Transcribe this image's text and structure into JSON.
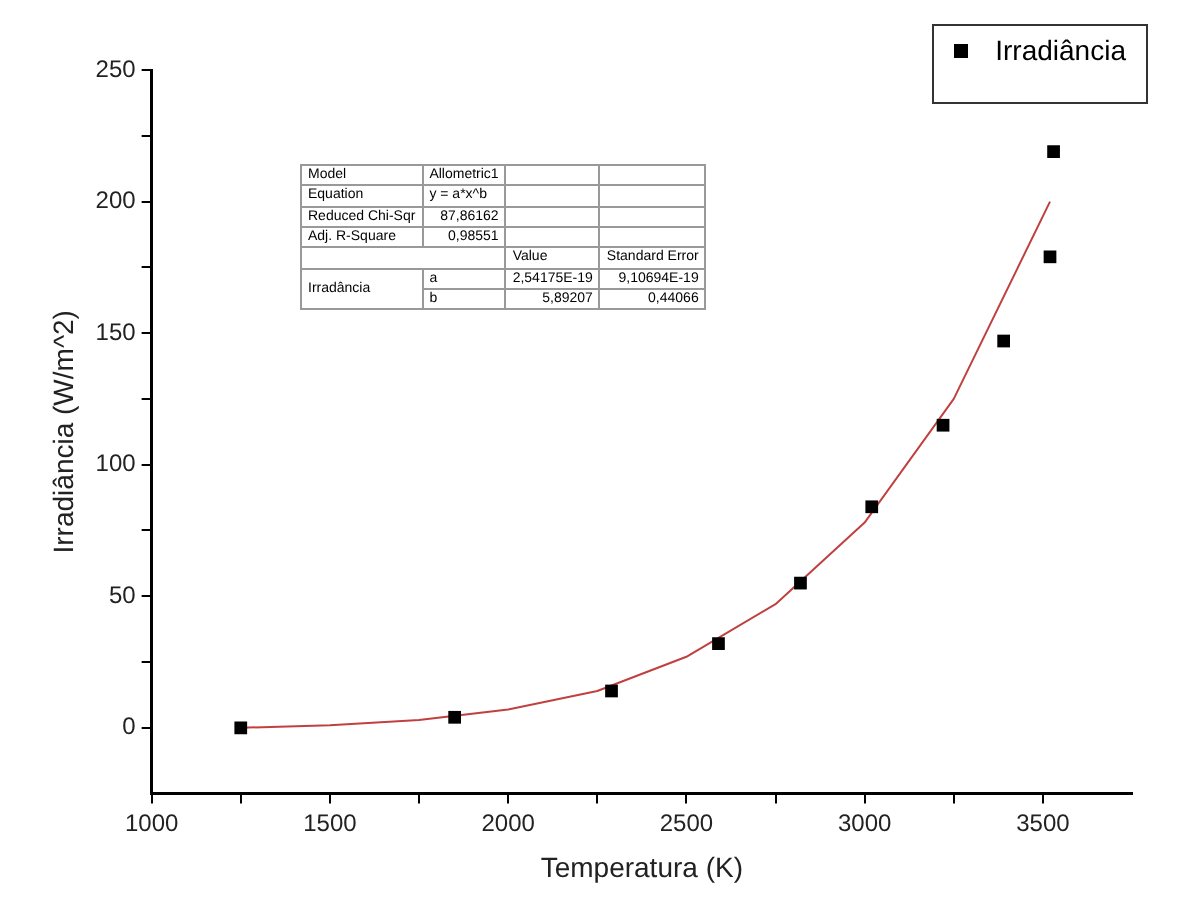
{
  "chart_data": {
    "type": "scatter",
    "xlabel": "Temperatura (K)",
    "ylabel": "Irradiância (W/m^2)",
    "xlim": [
      1000,
      3750
    ],
    "ylim": [
      -25,
      250
    ],
    "xticks": [
      1000,
      {
        "value": 1250,
        "label": null
      },
      1500,
      {
        "value": 1750,
        "label": null
      },
      2000,
      {
        "value": 2250,
        "label": null
      },
      2500,
      {
        "value": 2750,
        "label": null
      },
      3000,
      {
        "value": 3250,
        "label": null
      },
      3500
    ],
    "yticks": [
      0,
      {
        "value": 25,
        "label": null
      },
      50,
      {
        "value": 75,
        "label": null
      },
      100,
      {
        "value": 125,
        "label": null
      },
      150,
      {
        "value": 175,
        "label": null
      },
      200,
      {
        "value": 225,
        "label": null
      },
      250
    ],
    "grid": false,
    "legend": "top right",
    "marker": "square",
    "series": [
      {
        "name": "Irradiância",
        "color": "#000000",
        "x": [
          1250,
          1850,
          2290,
          2590,
          2820,
          3020,
          3220,
          3390,
          3520,
          3530
        ],
        "values": [
          0,
          4,
          14,
          32,
          55,
          84,
          115,
          147,
          179,
          219
        ]
      },
      {
        "type": "line",
        "color": "#c04040",
        "marker": "none",
        "x": [
          1250,
          1500,
          1750,
          2000,
          2250,
          2500,
          2750,
          3000,
          3250,
          3520
        ],
        "values": [
          0,
          1,
          3,
          7,
          14,
          27,
          47,
          78,
          125,
          200
        ]
      }
    ],
    "annotations": [
      "Model",
      "Allometric1",
      "Equation",
      "y = a*x^b",
      "Reduced Chi-Sqr",
      "87,86162",
      "Adj. R-Square",
      "0,98551",
      "Value",
      "Standard Error",
      "Irradância",
      "a",
      "2,54175E-19",
      "9,10694E-19",
      "b",
      "5,89207",
      "0,44066"
    ]
  }
}
